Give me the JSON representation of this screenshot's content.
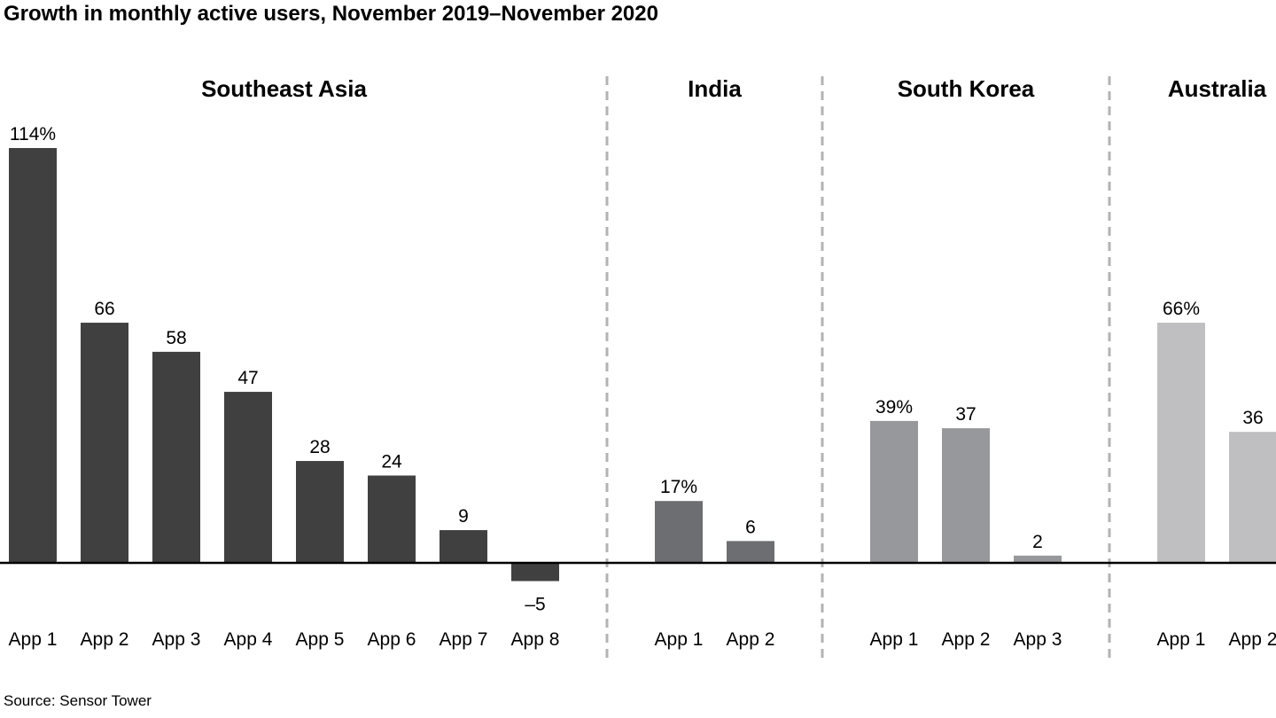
{
  "title": "Growth in monthly active users, November 2019–November 2020",
  "source": "Source: Sensor Tower",
  "chart_data": {
    "type": "bar",
    "title": "Growth in monthly active users, November 2019–November 2020",
    "xlabel": "",
    "ylabel": "",
    "ylim": [
      -10,
      114
    ],
    "grid": false,
    "groups": [
      {
        "name": "Southeast Asia",
        "color": "#404041",
        "categories": [
          "App 1",
          "App 2",
          "App 3",
          "App 4",
          "App 5",
          "App 6",
          "App 7",
          "App 8"
        ],
        "values": [
          114,
          66,
          58,
          47,
          28,
          24,
          9,
          -5
        ],
        "value_labels": [
          "114%",
          "66",
          "58",
          "47",
          "28",
          "24",
          "9",
          "–5"
        ]
      },
      {
        "name": "India",
        "color": "#6d6e71",
        "categories": [
          "App 1",
          "App 2"
        ],
        "values": [
          17,
          6
        ],
        "value_labels": [
          "17%",
          "6"
        ]
      },
      {
        "name": "South Korea",
        "color": "#97989b",
        "categories": [
          "App 1",
          "App 2",
          "App 3"
        ],
        "values": [
          39,
          37,
          2
        ],
        "value_labels": [
          "39%",
          "37",
          "2"
        ]
      },
      {
        "name": "Australia",
        "color": "#bfbfc1",
        "categories": [
          "App 1",
          "App 2"
        ],
        "values": [
          66,
          36
        ],
        "value_labels": [
          "66%",
          "36"
        ]
      }
    ]
  }
}
